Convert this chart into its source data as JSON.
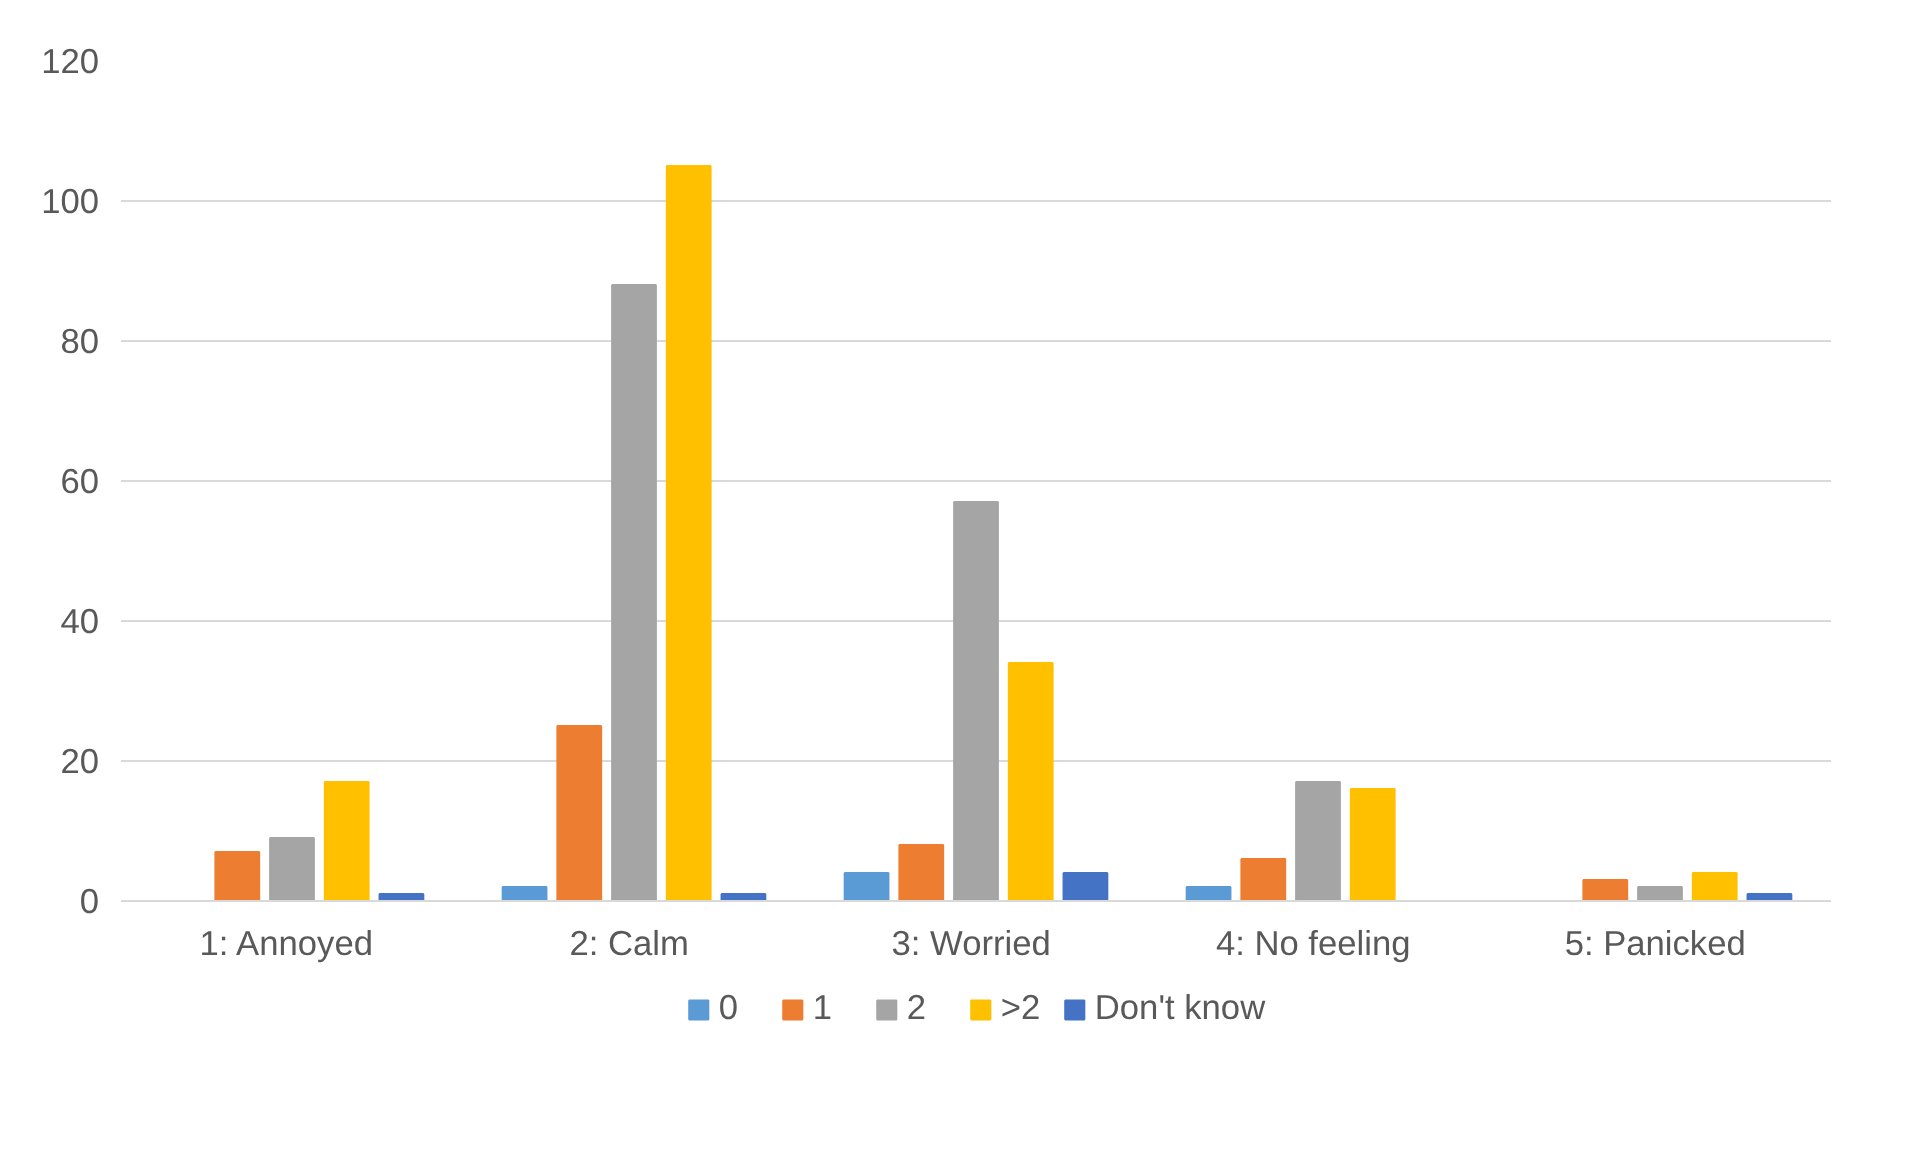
{
  "chart_data": {
    "type": "bar",
    "categories": [
      "1:  Annoyed",
      "2:  Calm",
      "3:  Worried",
      "4:  No feeling",
      "5:  Panicked"
    ],
    "series": [
      {
        "name": "0",
        "color": "#5b9bd5",
        "values": [
          0,
          2,
          4,
          2,
          0
        ]
      },
      {
        "name": "1",
        "color": "#ed7d31",
        "values": [
          7,
          25,
          8,
          6,
          3
        ]
      },
      {
        "name": "2",
        "color": "#a5a5a5",
        "values": [
          9,
          88,
          57,
          17,
          2
        ]
      },
      {
        "name": ">2",
        "color": "#ffc000",
        "values": [
          17,
          105,
          34,
          16,
          4
        ]
      },
      {
        "name": "Don't know",
        "color": "#4472c4",
        "values": [
          1,
          1,
          4,
          0,
          1
        ]
      }
    ],
    "ylim": [
      0,
      120
    ],
    "yticks": [
      0,
      20,
      40,
      60,
      80,
      100,
      120
    ],
    "grid": "y",
    "legend": "bottom"
  }
}
